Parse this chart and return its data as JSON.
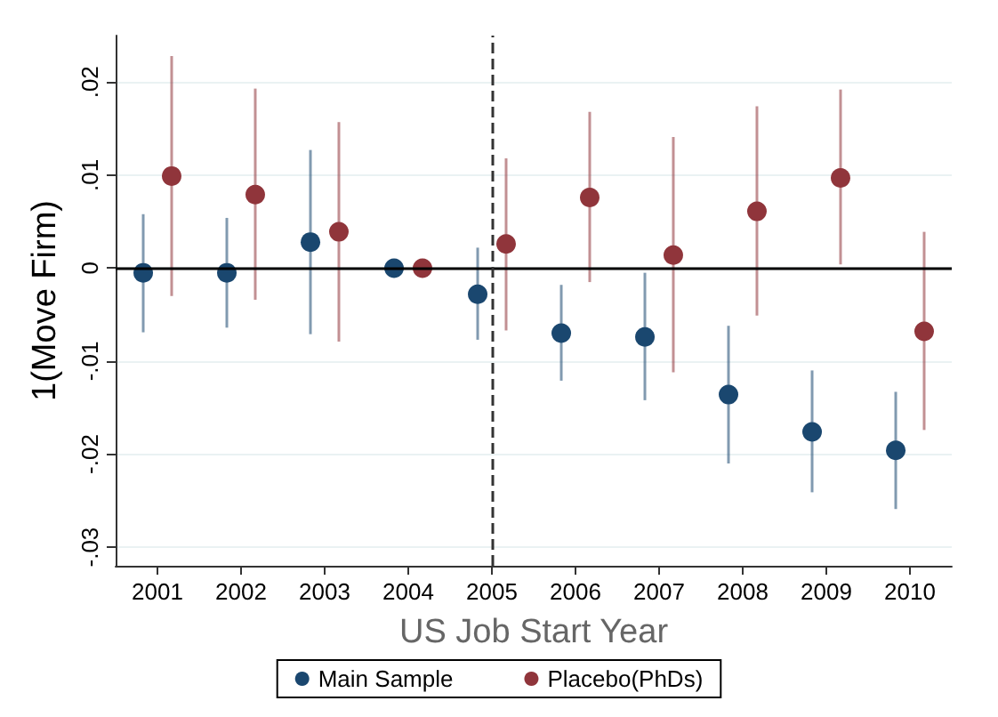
{
  "chart_data": {
    "type": "scatter",
    "xlabel": "US Job Start Year",
    "ylabel": "1(Move Firm)",
    "xlim": [
      2000.5,
      2010.5
    ],
    "xticks": [
      2001,
      2002,
      2003,
      2004,
      2005,
      2006,
      2007,
      2008,
      2009,
      2010
    ],
    "ylim": [
      -0.032,
      0.025
    ],
    "yticks": [
      {
        "value": -0.03,
        "label": "-.03"
      },
      {
        "value": -0.02,
        "label": "-.02"
      },
      {
        "value": -0.01,
        "label": "-.01"
      },
      {
        "value": 0,
        "label": "0"
      },
      {
        "value": 0.01,
        "label": ".01"
      },
      {
        "value": 0.02,
        "label": ".02"
      }
    ],
    "grid": "y",
    "legend": "bottom",
    "marker": "circle",
    "series": [
      {
        "name": "Main Sample",
        "color": "#1a476f",
        "x": [
          2000.83,
          2001.83,
          2002.83,
          2003.83,
          2004.83,
          2005.83,
          2006.83,
          2007.83,
          2008.83,
          2009.83
        ],
        "values": [
          -0.0005,
          -0.0005,
          0.0028,
          0,
          -0.0028,
          -0.007,
          -0.0074,
          -0.0136,
          -0.0176,
          -0.0196
        ],
        "errors": [
          [
            -0.0069,
            0.0058
          ],
          [
            -0.0064,
            0.0054
          ],
          [
            -0.0071,
            0.0127
          ],
          null,
          [
            -0.0077,
            0.0022
          ],
          [
            -0.0121,
            -0.0018
          ],
          [
            -0.0142,
            -0.0005
          ],
          [
            -0.021,
            -0.0062
          ],
          [
            -0.0241,
            -0.011
          ],
          [
            -0.0259,
            -0.0133
          ]
        ]
      },
      {
        "name": "Placebo(PhDs)",
        "color": "#90353b",
        "x": [
          2001.17,
          2002.17,
          2003.17,
          2004.17,
          2005.17,
          2006.17,
          2007.17,
          2008.17,
          2009.17,
          2010.17
        ],
        "values": [
          0.0099,
          0.0079,
          0.0039,
          0,
          0.0026,
          0.0076,
          0.0014,
          0.0061,
          0.0097,
          -0.0068
        ],
        "errors": [
          [
            -0.003,
            0.0228
          ],
          [
            -0.0034,
            0.0193
          ],
          [
            -0.0079,
            0.0157
          ],
          null,
          [
            -0.0067,
            0.0118
          ],
          [
            -0.0015,
            0.0168
          ],
          [
            -0.0112,
            0.0141
          ],
          [
            -0.0051,
            0.0174
          ],
          [
            0.0004,
            0.0192
          ],
          [
            -0.0174,
            0.0039
          ]
        ]
      }
    ],
    "ref_lines": [
      {
        "axis": "y",
        "value": 0,
        "color": "#000000",
        "line_style": "solid"
      },
      {
        "axis": "x",
        "value": 2005,
        "color": "#333333",
        "line_style": "dashed"
      }
    ]
  }
}
